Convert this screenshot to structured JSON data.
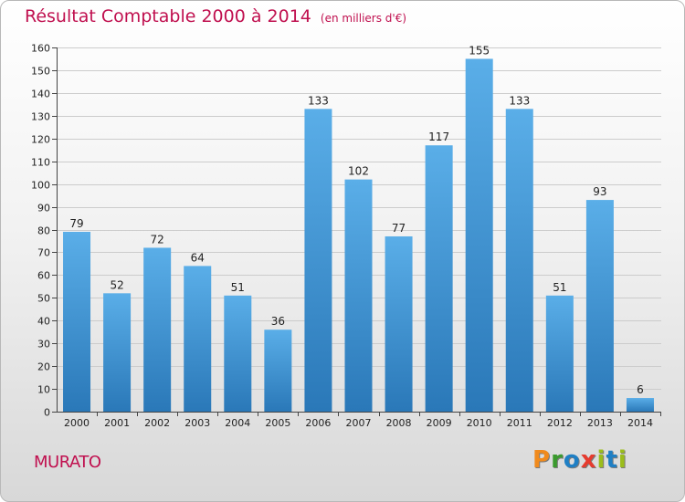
{
  "header": {
    "title": "Résultat Comptable 2000 à 2014",
    "subtitle": "(en milliers d'€)"
  },
  "footer": {
    "commune": "MURATO",
    "logo": {
      "letters": [
        "P",
        "r",
        "o",
        "x",
        "i",
        "t",
        "i"
      ]
    }
  },
  "colors": {
    "title": "#c0104f",
    "bar_top": "#5aaee8",
    "bar_bottom": "#2a78b8",
    "grid": "#cccccc",
    "logo": [
      "#f08a1c",
      "#3b9a2e",
      "#1f7fc4",
      "#e63b2e",
      "#9bbd1b",
      "#1f7fc4",
      "#9bbd1b"
    ]
  },
  "chart_data": {
    "type": "bar",
    "title": "Résultat Comptable 2000 à 2014",
    "subtitle": "(en milliers d'€)",
    "xlabel": "",
    "ylabel": "",
    "categories": [
      "2000",
      "2001",
      "2002",
      "2003",
      "2004",
      "2005",
      "2006",
      "2007",
      "2008",
      "2009",
      "2010",
      "2011",
      "2012",
      "2013",
      "2014"
    ],
    "values": [
      79,
      52,
      72,
      64,
      51,
      36,
      133,
      102,
      77,
      117,
      155,
      133,
      51,
      93,
      6
    ],
    "ylim": [
      0,
      160
    ],
    "yticks": [
      0,
      10,
      20,
      30,
      40,
      50,
      60,
      70,
      80,
      90,
      100,
      110,
      120,
      130,
      140,
      150,
      160
    ],
    "grid": true,
    "data_labels": true
  }
}
